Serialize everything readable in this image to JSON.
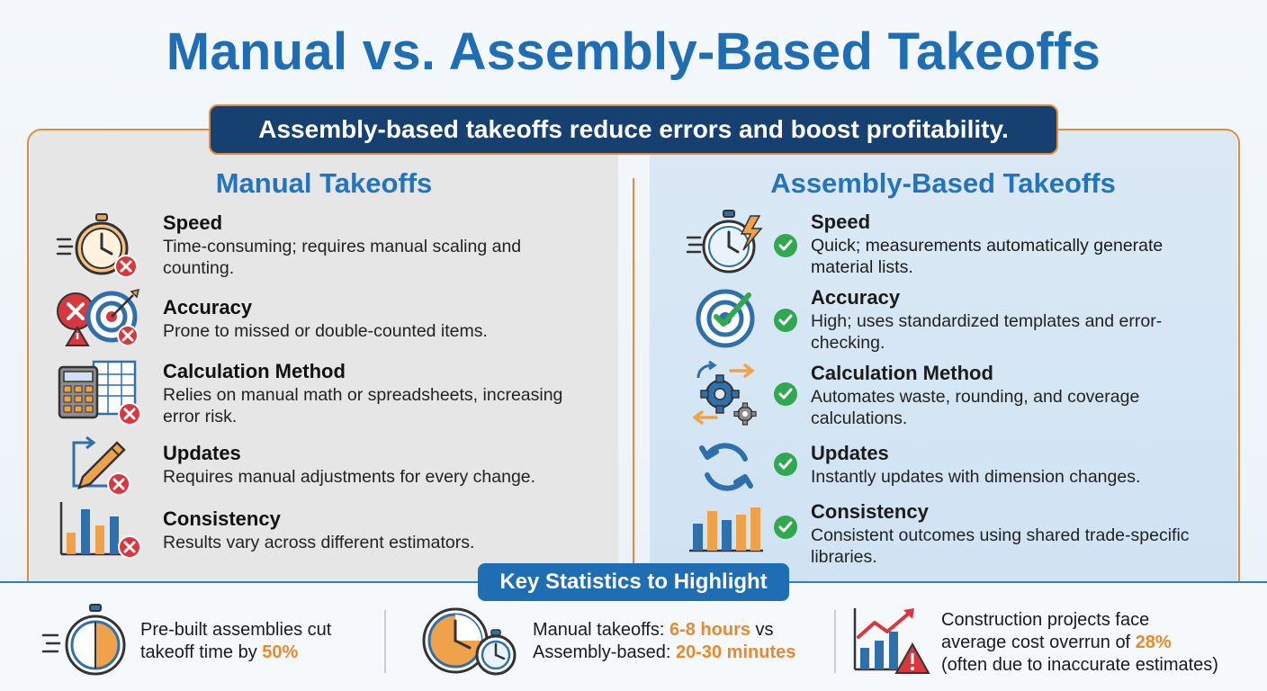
{
  "title": "Manual vs. Assembly-Based Takeoffs",
  "banner": "Assembly-based takeoffs reduce errors and boost profitability.",
  "manual": {
    "heading": "Manual Takeoffs",
    "rows": [
      {
        "label": "Speed",
        "desc": "Time-consuming; requires manual scaling and counting.",
        "icon": "stopwatch-icon"
      },
      {
        "label": "Accuracy",
        "desc": "Prone to missed or double-counted items.",
        "icon": "target-icon"
      },
      {
        "label": "Calculation Method",
        "desc": "Relies on manual math or spreadsheets, increasing error risk.",
        "icon": "calculator-icon"
      },
      {
        "label": "Updates",
        "desc": "Requires manual adjustments for every change.",
        "icon": "pencil-icon"
      },
      {
        "label": "Consistency",
        "desc": "Results vary across different estimators.",
        "icon": "bar-chart-icon"
      }
    ]
  },
  "assembly": {
    "heading": "Assembly-Based Takeoffs",
    "rows": [
      {
        "label": "Speed",
        "desc": "Quick; measurements automatically generate material lists.",
        "icon": "fast-stopwatch-icon"
      },
      {
        "label": "Accuracy",
        "desc": "High; uses standardized templates and error-checking.",
        "icon": "target-check-icon"
      },
      {
        "label": "Calculation Method",
        "desc": "Automates waste, rounding, and coverage calculations.",
        "icon": "gears-icon"
      },
      {
        "label": "Updates",
        "desc": "Instantly updates with dimension changes.",
        "icon": "refresh-icon"
      },
      {
        "label": "Consistency",
        "desc": "Consistent outcomes using shared trade-specific libraries.",
        "icon": "bar-chart-icon"
      }
    ]
  },
  "stats": {
    "label": "Key Statistics to Highlight",
    "s1": {
      "pre": "Pre-built assemblies cut",
      "pre2": "takeoff time by ",
      "hl": "50%"
    },
    "s2": {
      "a": "Manual takeoffs: ",
      "a_hl": "6-8 hours",
      "a_post": " vs",
      "b": "Assembly-based: ",
      "b_hl": "20-30 minutes"
    },
    "s3": {
      "l1": "Construction projects face",
      "l2": "average cost overrun of ",
      "l2_hl": "28%",
      "l3": "(often due to inaccurate estimates)"
    }
  },
  "colors": {
    "accent": "#1f6db3",
    "orange": "#e8892b",
    "red": "#d9363e",
    "green": "#2fa84f",
    "navy": "#16406f"
  }
}
